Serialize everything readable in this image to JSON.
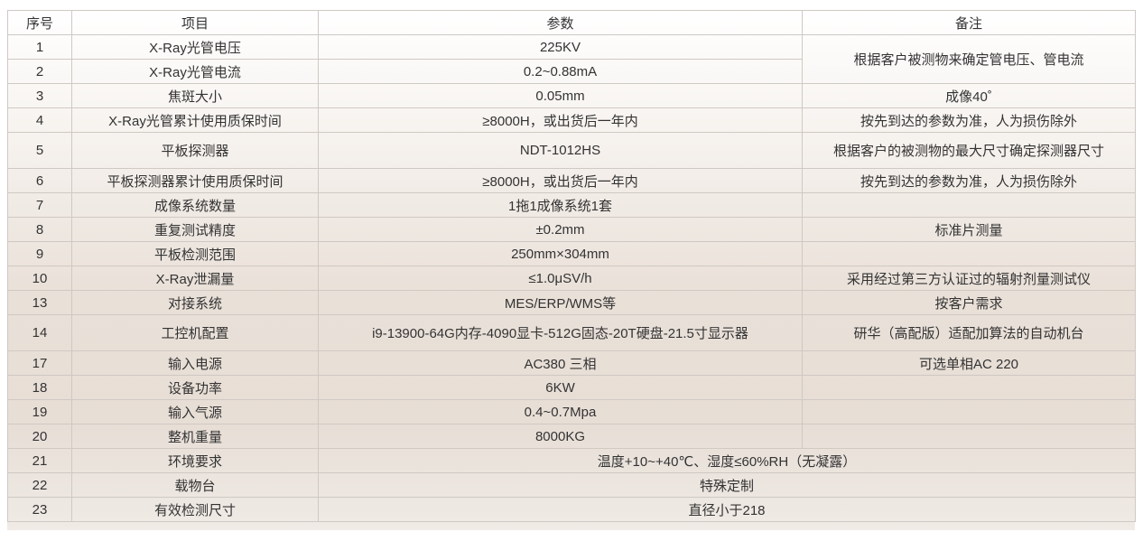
{
  "headers": [
    "序号",
    "项目",
    "参数",
    "备注"
  ],
  "rows": [
    {
      "no": "1",
      "item": "X-Ray光管电压",
      "param": "225KV",
      "note": "根据客户被测物来确定管电压、管电流"
    },
    {
      "no": "2",
      "item": "X-Ray光管电流",
      "param": "0.2~0.88mA"
    },
    {
      "no": "3",
      "item": "焦斑大小",
      "param": "0.05mm",
      "note": "成像40˚"
    },
    {
      "no": "4",
      "item": "X-Ray光管累计使用质保时间",
      "param": "≥8000H，或出货后一年内",
      "note": "按先到达的参数为准，人为损伤除外"
    },
    {
      "no": "5",
      "item": "平板探测器",
      "param": "NDT-1012HS",
      "note": "根据客户的被测物的最大尺寸确定探测器尺寸"
    },
    {
      "no": "6",
      "item": "平板探测器累计使用质保时间",
      "param": "≥8000H，或出货后一年内",
      "note": "按先到达的参数为准，人为损伤除外"
    },
    {
      "no": "7",
      "item": "成像系统数量",
      "param": "1拖1成像系统1套",
      "note": ""
    },
    {
      "no": "8",
      "item": "重复测试精度",
      "param": "±0.2mm",
      "note": "标准片测量"
    },
    {
      "no": "9",
      "item": "平板检测范围",
      "param": "250mm×304mm",
      "note": ""
    },
    {
      "no": "10",
      "item": "X-Ray泄漏量",
      "param": "≤1.0μSV/h",
      "note": "采用经过第三方认证过的辐射剂量测试仪"
    },
    {
      "no": "13",
      "item": "对接系统",
      "param": "MES/ERP/WMS等",
      "note": "按客户需求"
    },
    {
      "no": "14",
      "item": "工控机配置",
      "param": "i9-13900-64G内存-4090显卡-512G固态-20T硬盘-21.5寸显示器",
      "note": "研华（高配版）适配加算法的自动机台"
    },
    {
      "no": "17",
      "item": "输入电源",
      "param": "AC380 三相",
      "note": "可选单相AC 220"
    },
    {
      "no": "18",
      "item": "设备功率",
      "param": "6KW",
      "note": ""
    },
    {
      "no": "19",
      "item": "输入气源",
      "param": "0.4~0.7Mpa",
      "note": ""
    },
    {
      "no": "20",
      "item": "整机重量",
      "param": "8000KG",
      "note": ""
    },
    {
      "no": "21",
      "item": "环境要求",
      "merged": "温度+10~+40℃、湿度≤60%RH（无凝露）"
    },
    {
      "no": "22",
      "item": "载物台",
      "merged": "特殊定制"
    },
    {
      "no": "23",
      "item": "有效检测尺寸",
      "merged": "直径小于218"
    }
  ]
}
